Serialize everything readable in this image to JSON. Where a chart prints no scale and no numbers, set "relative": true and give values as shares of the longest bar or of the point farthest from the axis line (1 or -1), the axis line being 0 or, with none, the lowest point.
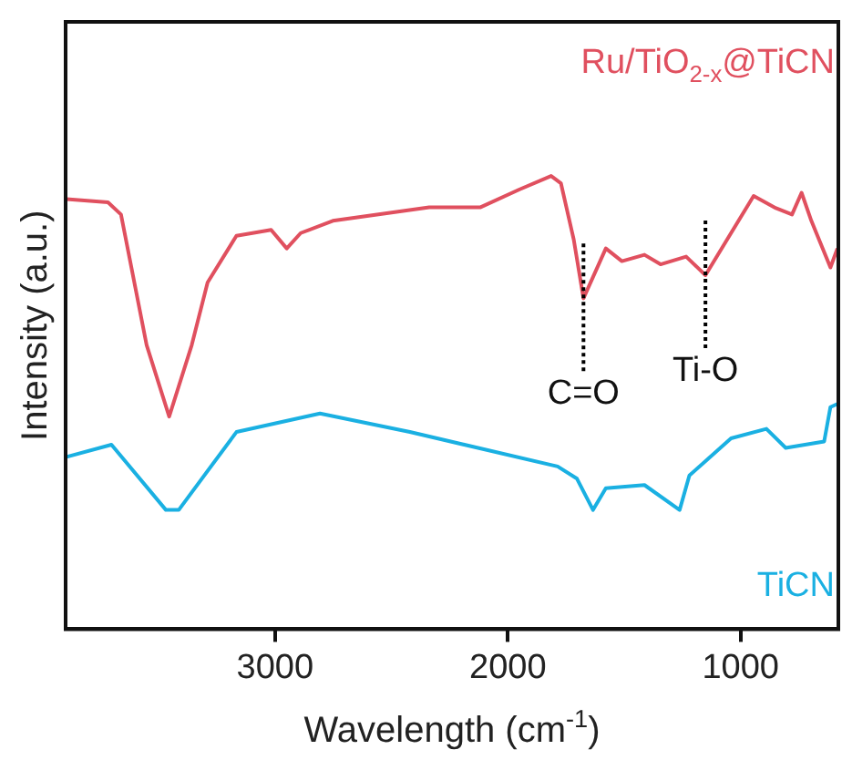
{
  "chart_data": {
    "type": "line",
    "xlabel": "Wavelength (cm$^{-1}$)",
    "ylabel": "Intensity (a.u.)",
    "relative": true,
    "xlim": [
      3900,
      580
    ],
    "xticks": [
      3000,
      2000,
      1000
    ],
    "grid": false,
    "legend": false,
    "marker": "none",
    "line_style": "solid",
    "series": [
      {
        "name": "Ru/TiO$_{2-x}$@TiCN",
        "color": "#e0505f",
        "x": [
          3896,
          3718,
          3662,
          3552,
          3455,
          3358,
          3290,
          3166,
          3017,
          2950,
          2890,
          2752,
          2338,
          2117,
          1951,
          1814,
          1772,
          1717,
          1675,
          1579,
          1510,
          1413,
          1344,
          1234,
          1151,
          944,
          848,
          779,
          738,
          696,
          614,
          584
        ],
        "values": [
          0.949,
          0.942,
          0.915,
          0.627,
          0.469,
          0.627,
          0.765,
          0.868,
          0.881,
          0.84,
          0.874,
          0.901,
          0.931,
          0.931,
          0.97,
          1,
          0.984,
          0.86,
          0.73,
          0.84,
          0.812,
          0.826,
          0.805,
          0.822,
          0.781,
          0.956,
          0.929,
          0.915,
          0.963,
          0.901,
          0.798,
          0.84
        ]
      },
      {
        "name": "TiCN",
        "color": "#1ab0e2",
        "x": [
          3896,
          3703,
          3469,
          3414,
          3166,
          2807,
          2421,
          1786,
          1703,
          1634,
          1579,
          1413,
          1262,
          1220,
          1041,
          889,
          806,
          641,
          614,
          584
        ],
        "values": [
          0.38,
          0.407,
          0.263,
          0.263,
          0.435,
          0.476,
          0.435,
          0.359,
          0.332,
          0.263,
          0.311,
          0.318,
          0.263,
          0.339,
          0.421,
          0.442,
          0.4,
          0.414,
          0.49,
          0.497
        ]
      }
    ],
    "annotations": [
      {
        "text": "C=O",
        "x": 1675,
        "y": 0.73
      },
      {
        "text": "Ti-O",
        "x": 1151,
        "y": 0.781
      }
    ]
  }
}
